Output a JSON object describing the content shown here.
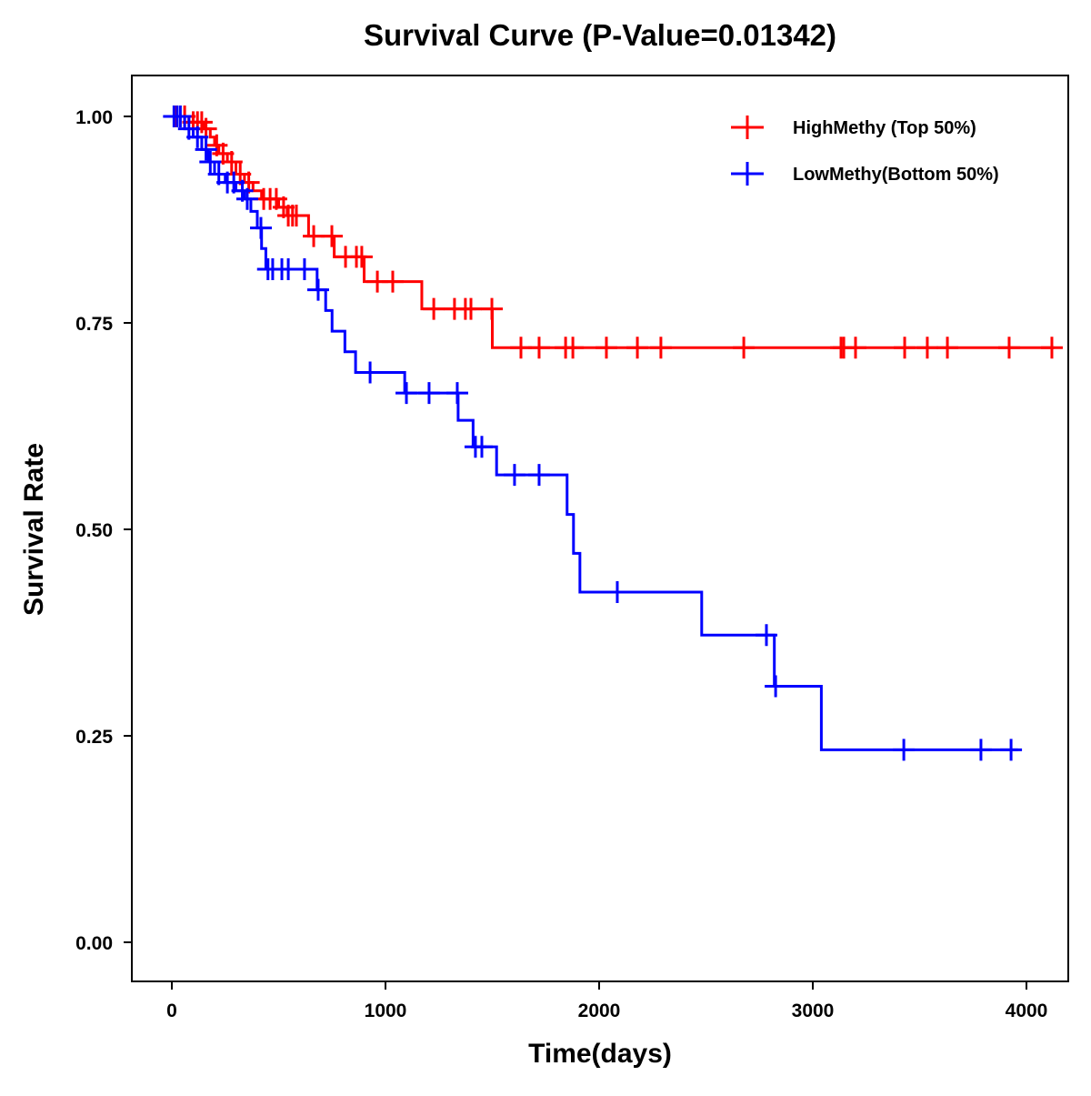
{
  "chart_data": {
    "type": "line",
    "subtype": "kaplan-meier step",
    "title": "Survival Curve (P-Value=0.01342)",
    "xlabel": "Time(days)",
    "ylabel": "Survival Rate",
    "xlim": [
      -200,
      4180
    ],
    "ylim": [
      -0.05,
      1.05
    ],
    "xticks": [
      0,
      1000,
      2000,
      3000,
      4000
    ],
    "yticks": [
      0.0,
      0.25,
      0.5,
      0.75,
      1.0
    ],
    "ytick_labels": [
      "0.00",
      "0.25",
      "0.50",
      "0.75",
      "1.00"
    ],
    "xtick_labels": [
      "0",
      "1000",
      "2000",
      "3000",
      "4000"
    ],
    "grid": false,
    "legend_position": "top-right",
    "series": [
      {
        "name": "HighMethy (Top 50%)",
        "color": "#ff0000",
        "end_time": 4130,
        "steps": [
          [
            0,
            1.0
          ],
          [
            80,
            0.993
          ],
          [
            150,
            0.985
          ],
          [
            180,
            0.975
          ],
          [
            200,
            0.965
          ],
          [
            220,
            0.955
          ],
          [
            260,
            0.945
          ],
          [
            300,
            0.93
          ],
          [
            340,
            0.92
          ],
          [
            380,
            0.91
          ],
          [
            420,
            0.9
          ],
          [
            500,
            0.89
          ],
          [
            540,
            0.88
          ],
          [
            640,
            0.855
          ],
          [
            760,
            0.83
          ],
          [
            900,
            0.8
          ],
          [
            1170,
            0.767
          ],
          [
            1500,
            0.72
          ]
        ],
        "censored": [
          20,
          60,
          100,
          120,
          140,
          160,
          210,
          240,
          280,
          320,
          360,
          430,
          460,
          489,
          523,
          545,
          565,
          583,
          664,
          749,
          813,
          864,
          889,
          962,
          1034,
          1226,
          1323,
          1374,
          1400,
          1498,
          1634,
          1719,
          1843,
          1877,
          2034,
          2179,
          2289,
          2677,
          3132,
          3145,
          3200,
          3430,
          3536,
          3630,
          3919,
          4119
        ]
      },
      {
        "name": "LowMethy(Bottom 50%)",
        "color": "#0000ff",
        "end_time": 3960,
        "steps": [
          [
            0,
            1.0
          ],
          [
            60,
            0.985
          ],
          [
            100,
            0.975
          ],
          [
            140,
            0.96
          ],
          [
            170,
            0.945
          ],
          [
            200,
            0.93
          ],
          [
            250,
            0.92
          ],
          [
            300,
            0.91
          ],
          [
            340,
            0.9
          ],
          [
            370,
            0.885
          ],
          [
            400,
            0.865
          ],
          [
            420,
            0.84
          ],
          [
            440,
            0.815
          ],
          [
            680,
            0.79
          ],
          [
            720,
            0.765
          ],
          [
            750,
            0.74
          ],
          [
            810,
            0.715
          ],
          [
            860,
            0.69
          ],
          [
            1090,
            0.665
          ],
          [
            1340,
            0.632
          ],
          [
            1410,
            0.6
          ],
          [
            1520,
            0.566
          ],
          [
            1850,
            0.518
          ],
          [
            1880,
            0.471
          ],
          [
            1910,
            0.424
          ],
          [
            2480,
            0.372
          ],
          [
            2820,
            0.31
          ],
          [
            3040,
            0.233
          ]
        ],
        "censored": [
          10,
          25,
          40,
          80,
          120,
          160,
          180,
          220,
          260,
          290,
          330,
          353,
          417,
          450,
          472,
          515,
          545,
          621,
          685,
          928,
          1098,
          1204,
          1336,
          1421,
          1451,
          1604,
          1719,
          2085,
          2783,
          2826,
          3426,
          3787,
          3928
        ]
      }
    ]
  }
}
